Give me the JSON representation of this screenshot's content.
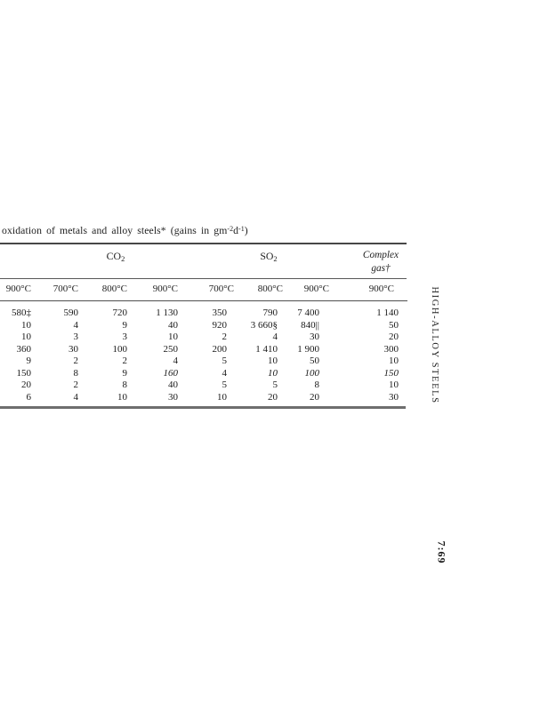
{
  "caption": {
    "main": "oxidation of metals and alloy steels* (gains in gm",
    "sup_a": "-2",
    "mid": "d",
    "sup_b": "-1",
    "end": ")"
  },
  "groups": {
    "co2": {
      "base": "CO",
      "sub": "2"
    },
    "so2": {
      "base": "SO",
      "sub": "2"
    },
    "complex": {
      "line1": "Complex",
      "line2": "gas†"
    }
  },
  "table": {
    "columns": [
      "900°C",
      "700°C",
      "800°C",
      "900°C",
      "700°C",
      "800°C",
      "900°C",
      "900°C"
    ],
    "rows": [
      [
        "580‡",
        "590",
        "720",
        "1 130",
        "350",
        "790",
        "7 400",
        "1 140"
      ],
      [
        "10",
        "4",
        "9",
        "40",
        "920",
        "3 660§",
        "840||",
        "50"
      ],
      [
        "10",
        "3",
        "3",
        "10",
        "2",
        "4",
        "30",
        "20"
      ],
      [
        "360",
        "30",
        "100",
        "250",
        "200",
        "1 410",
        "1 900",
        "300"
      ],
      [
        "9",
        "2",
        "2",
        "4",
        "5",
        "10",
        "50",
        "10"
      ],
      [
        "150",
        "8",
        "9",
        "160",
        "4",
        "10",
        "100",
        "150"
      ],
      [
        "20",
        "2",
        "8",
        "40",
        "5",
        "5",
        "8",
        "10"
      ],
      [
        "6",
        "4",
        "10",
        "30",
        "10",
        "20",
        "20",
        "30"
      ]
    ],
    "italic_cells": [
      [
        5,
        3
      ],
      [
        5,
        5
      ],
      [
        5,
        6
      ],
      [
        5,
        7
      ]
    ]
  },
  "margin": {
    "side_label": "HIGH-ALLOY STEELS",
    "page_number": "7:69"
  },
  "colors": {
    "ink": "#1c1c1c",
    "rule_dark": "#474747",
    "rule_light": "#6e6e6e",
    "paper": "#ffffff"
  }
}
